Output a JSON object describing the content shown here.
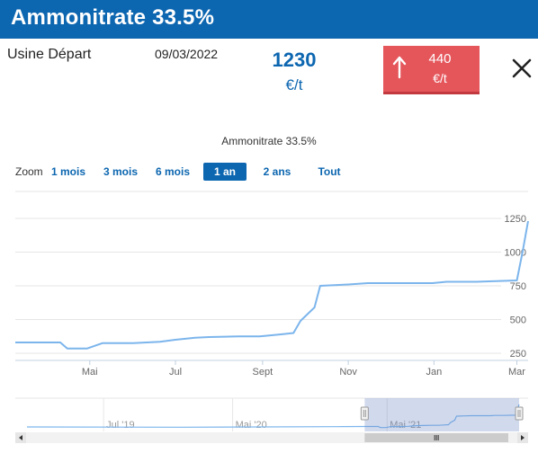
{
  "header": {
    "title": "Ammonitrate 33.5%"
  },
  "info": {
    "label": "Usine Départ",
    "date": "09/03/2022",
    "price": "1230",
    "price_unit": "€/t",
    "change_value": "440",
    "change_unit": "€/t"
  },
  "colors": {
    "brand": "#0c66b0",
    "badge": "#e5565b",
    "line": "#7cb5ec"
  },
  "icons": {
    "change": "arrow-up-icon",
    "close": "close-icon"
  },
  "zoom": {
    "label": "Zoom",
    "options": [
      "1 mois",
      "3 mois",
      "6 mois",
      "1 an",
      "2 ans",
      "Tout"
    ],
    "selected": "1 an"
  },
  "chart_data": {
    "type": "line",
    "title": "Ammonitrate 33.5%",
    "y_axis_side": "right",
    "ylim": [
      200,
      1300
    ],
    "yticks": [
      250,
      500,
      750,
      1000,
      1250
    ],
    "xticks": [
      "Mai",
      "Jul",
      "Sept",
      "Nov",
      "Jan",
      "Mar"
    ],
    "grid": true,
    "series": [
      {
        "x": [
          "2021-03-09",
          "2021-04-10",
          "2021-04-15",
          "2021-04-29",
          "2021-05-10",
          "2021-06-01",
          "2021-06-20",
          "2021-07-01",
          "2021-07-15",
          "2021-07-25",
          "2021-08-15",
          "2021-08-30",
          "2021-09-14",
          "2021-09-23",
          "2021-09-28",
          "2021-10-08",
          "2021-10-12",
          "2021-11-01",
          "2021-11-15",
          "2021-12-31",
          "2022-01-10",
          "2022-01-31",
          "2022-03-01",
          "2022-03-05",
          "2022-03-09"
        ],
        "y": [
          330,
          330,
          285,
          285,
          325,
          325,
          335,
          350,
          365,
          370,
          375,
          375,
          390,
          400,
          490,
          590,
          750,
          760,
          770,
          770,
          780,
          780,
          790,
          1000,
          1230
        ]
      }
    ],
    "navigator": {
      "labels": [
        "Jul '19",
        "Mai '20",
        "Mai '21"
      ],
      "selection": [
        "2021-03-09",
        "2022-03-09"
      ]
    }
  }
}
